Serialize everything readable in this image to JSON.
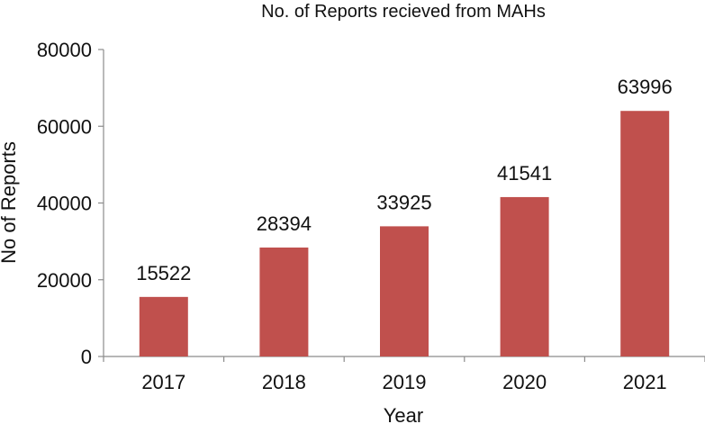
{
  "chart_data": {
    "type": "bar",
    "title": "No. of Reports recieved from MAHs",
    "xlabel": "Year",
    "ylabel": "No of Reports",
    "categories": [
      "2017",
      "2018",
      "2019",
      "2020",
      "2021"
    ],
    "values": [
      15522,
      28394,
      33925,
      41541,
      63996
    ],
    "data_labels": [
      "15522",
      "28394",
      "33925",
      "41541",
      "63996"
    ],
    "y_ticks": [
      "0",
      "20000",
      "40000",
      "60000",
      "80000"
    ],
    "ylim": [
      0,
      80000
    ],
    "grid": false,
    "legend": "none",
    "colors": {
      "bar": "#c0504d",
      "axis": "#8c8c8c",
      "text": "#111111"
    }
  }
}
